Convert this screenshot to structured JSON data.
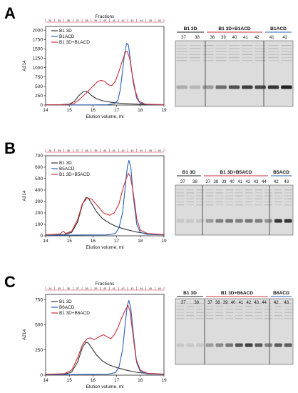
{
  "panels": [
    {
      "letter": "A",
      "frac_title": "Fractions",
      "fractions": [
        "34",
        "35",
        "36",
        "37",
        "38",
        "39",
        "40",
        "41",
        "42",
        "43",
        "44",
        "45",
        "46"
      ],
      "gel": {
        "groups": [
          {
            "label": "B1 3D",
            "lanes": [
              "37",
              "38"
            ],
            "color": "#222222"
          },
          {
            "label": "B1 3D+B1ACD",
            "lanes": [
              "38",
              "39",
              "40",
              "41",
              "42"
            ],
            "color": "#cc2f3a"
          },
          {
            "label": "B1ACD",
            "lanes": [
              "41",
              "42"
            ],
            "color": "#2a5fb0"
          }
        ],
        "band_strength": [
          0.25,
          0.2,
          0.35,
          0.6,
          0.75,
          0.85,
          0.8,
          0.9,
          1.0
        ]
      }
    },
    {
      "letter": "B",
      "frac_title": "",
      "fractions": [
        "34",
        "35",
        "36",
        "37",
        "38",
        "39",
        "40",
        "41",
        "42",
        "43",
        "44",
        "45",
        "46"
      ],
      "gel": {
        "groups": [
          {
            "label": "B1 3D",
            "lanes": [
              "37",
              "38"
            ],
            "color": "#222222"
          },
          {
            "label": "B1 3D+B5ACD",
            "lanes": [
              "37",
              "38",
              "39",
              "40",
              "41",
              "42",
              "43",
              "44"
            ],
            "color": "#cc2f3a"
          },
          {
            "label": "B5ACD",
            "lanes": [
              "42",
              "43"
            ],
            "color": "#2a5fb0"
          }
        ],
        "band_strength": [
          0.1,
          0.1,
          0.1,
          0.35,
          0.5,
          0.55,
          0.5,
          0.55,
          0.5,
          0.4,
          0.9,
          0.9
        ]
      }
    },
    {
      "letter": "C",
      "frac_title": "Fractions",
      "fractions": [
        "34",
        "35",
        "36",
        "37",
        "38",
        "39",
        "40",
        "41",
        "42",
        "43",
        "44",
        "45",
        "46"
      ],
      "gel": {
        "groups": [
          {
            "label": "B1 3D",
            "lanes": [
              "37",
              "38"
            ],
            "color": "#222222"
          },
          {
            "label": "B1 3D+B6ACD",
            "lanes": [
              "37",
              "38",
              "39",
              "40",
              "41",
              "42",
              "43",
              "44"
            ],
            "color": "#cc2f3a"
          },
          {
            "label": "B6ACD",
            "lanes": [
              "42",
              "43"
            ],
            "color": "#2a5fb0"
          }
        ],
        "band_strength": [
          0.1,
          0.1,
          0.1,
          0.35,
          0.45,
          0.55,
          0.75,
          0.85,
          0.7,
          0.5,
          0.7,
          0.7
        ]
      }
    }
  ],
  "chart_data": [
    {
      "type": "line",
      "panel": "A",
      "title": "Fractions",
      "xlabel": "Elution volume, ml",
      "ylabel": "A214",
      "xlim": [
        14,
        19
      ],
      "ylim": [
        0,
        2100
      ],
      "xticks": [
        14,
        15,
        16,
        17,
        18,
        19
      ],
      "yticks": [
        0,
        250,
        500,
        750,
        1000,
        1250,
        1500,
        1750,
        2000
      ],
      "legend_position": "top-left",
      "series": [
        {
          "name": "B1 3D",
          "color": "#333333",
          "points": [
            [
              14,
              5
            ],
            [
              14.6,
              8
            ],
            [
              15,
              25
            ],
            [
              15.2,
              90
            ],
            [
              15.4,
              250
            ],
            [
              15.6,
              360
            ],
            [
              15.7,
              370
            ],
            [
              15.8,
              340
            ],
            [
              15.95,
              250
            ],
            [
              16.15,
              170
            ],
            [
              16.4,
              115
            ],
            [
              16.8,
              70
            ],
            [
              17.2,
              45
            ],
            [
              17.6,
              30
            ],
            [
              18.2,
              15
            ],
            [
              19,
              8
            ]
          ]
        },
        {
          "name": "B1ACD",
          "color": "#2a5fb0",
          "points": [
            [
              14,
              5
            ],
            [
              16,
              5
            ],
            [
              16.6,
              8
            ],
            [
              16.9,
              35
            ],
            [
              17.05,
              120
            ],
            [
              17.15,
              400
            ],
            [
              17.25,
              900
            ],
            [
              17.33,
              1350
            ],
            [
              17.42,
              1650
            ],
            [
              17.5,
              1600
            ],
            [
              17.58,
              1200
            ],
            [
              17.7,
              600
            ],
            [
              17.85,
              180
            ],
            [
              18,
              50
            ],
            [
              18.3,
              15
            ],
            [
              19,
              8
            ]
          ]
        },
        {
          "name": "B1 3D+B1ACD",
          "color": "#cc2f3a",
          "points": [
            [
              14,
              5
            ],
            [
              14.8,
              8
            ],
            [
              15.2,
              40
            ],
            [
              15.45,
              160
            ],
            [
              15.7,
              310
            ],
            [
              15.95,
              470
            ],
            [
              16.2,
              630
            ],
            [
              16.35,
              660
            ],
            [
              16.5,
              630
            ],
            [
              16.65,
              540
            ],
            [
              16.8,
              520
            ],
            [
              16.95,
              640
            ],
            [
              17.1,
              900
            ],
            [
              17.25,
              1200
            ],
            [
              17.38,
              1420
            ],
            [
              17.45,
              1430
            ],
            [
              17.55,
              1250
            ],
            [
              17.65,
              850
            ],
            [
              17.8,
              350
            ],
            [
              17.95,
              100
            ],
            [
              18.2,
              25
            ],
            [
              19,
              8
            ]
          ]
        }
      ]
    },
    {
      "type": "line",
      "panel": "B",
      "title": "",
      "xlabel": "Elution volume, ml",
      "ylabel": "A214",
      "xlim": [
        14,
        19
      ],
      "ylim": [
        0,
        700
      ],
      "xticks": [
        14,
        15,
        16,
        17,
        18,
        19
      ],
      "yticks": [
        0,
        100,
        200,
        300,
        400,
        500,
        600,
        700
      ],
      "legend_position": "top-left",
      "series": [
        {
          "name": "B1 3D",
          "color": "#333333",
          "points": [
            [
              14,
              8
            ],
            [
              14.8,
              10
            ],
            [
              15.1,
              30
            ],
            [
              15.35,
              120
            ],
            [
              15.55,
              270
            ],
            [
              15.7,
              335
            ],
            [
              15.8,
              330
            ],
            [
              15.95,
              280
            ],
            [
              16.15,
              210
            ],
            [
              16.4,
              150
            ],
            [
              16.7,
              110
            ],
            [
              17,
              80
            ],
            [
              17.4,
              55
            ],
            [
              17.8,
              35
            ],
            [
              18.3,
              18
            ],
            [
              19,
              10
            ]
          ]
        },
        {
          "name": "B5ACD",
          "color": "#2a5fb0",
          "points": [
            [
              14,
              5
            ],
            [
              16.6,
              8
            ],
            [
              16.95,
              20
            ],
            [
              17.1,
              70
            ],
            [
              17.25,
              200
            ],
            [
              17.35,
              400
            ],
            [
              17.45,
              600
            ],
            [
              17.52,
              660
            ],
            [
              17.6,
              600
            ],
            [
              17.7,
              350
            ],
            [
              17.85,
              100
            ],
            [
              18,
              30
            ],
            [
              18.3,
              12
            ],
            [
              19,
              8
            ]
          ]
        },
        {
          "name": "B1 3D+B5ACD",
          "color": "#cc2f3a",
          "points": [
            [
              14,
              8
            ],
            [
              14.6,
              15
            ],
            [
              14.75,
              40
            ],
            [
              14.85,
              20
            ],
            [
              15.1,
              40
            ],
            [
              15.35,
              140
            ],
            [
              15.55,
              280
            ],
            [
              15.75,
              330
            ],
            [
              15.95,
              320
            ],
            [
              16.2,
              260
            ],
            [
              16.45,
              200
            ],
            [
              16.7,
              180
            ],
            [
              16.9,
              200
            ],
            [
              17.1,
              280
            ],
            [
              17.25,
              400
            ],
            [
              17.4,
              500
            ],
            [
              17.5,
              545
            ],
            [
              17.58,
              520
            ],
            [
              17.7,
              380
            ],
            [
              17.85,
              150
            ],
            [
              18,
              50
            ],
            [
              18.3,
              20
            ],
            [
              19,
              10
            ]
          ]
        }
      ]
    },
    {
      "type": "line",
      "panel": "C",
      "title": "Fractions",
      "xlabel": "Elution volume, ml",
      "ylabel": "A214",
      "xlim": [
        14,
        19
      ],
      "ylim": [
        0,
        800
      ],
      "xticks": [
        14,
        15,
        16,
        17,
        18,
        19
      ],
      "yticks": [
        0,
        250,
        500,
        750
      ],
      "legend_position": "top-left",
      "series": [
        {
          "name": "B1 3D",
          "color": "#333333",
          "points": [
            [
              14,
              8
            ],
            [
              14.8,
              10
            ],
            [
              15.1,
              30
            ],
            [
              15.35,
              130
            ],
            [
              15.55,
              270
            ],
            [
              15.7,
              325
            ],
            [
              15.8,
              320
            ],
            [
              15.95,
              270
            ],
            [
              16.15,
              200
            ],
            [
              16.4,
              140
            ],
            [
              16.7,
              100
            ],
            [
              17,
              75
            ],
            [
              17.4,
              50
            ],
            [
              17.8,
              30
            ],
            [
              18.3,
              15
            ],
            [
              19,
              8
            ]
          ]
        },
        {
          "name": "B6ACD",
          "color": "#2a5fb0",
          "points": [
            [
              14,
              5
            ],
            [
              16.6,
              8
            ],
            [
              16.95,
              25
            ],
            [
              17.1,
              80
            ],
            [
              17.25,
              250
            ],
            [
              17.35,
              480
            ],
            [
              17.45,
              690
            ],
            [
              17.52,
              740
            ],
            [
              17.6,
              660
            ],
            [
              17.72,
              380
            ],
            [
              17.85,
              120
            ],
            [
              18,
              35
            ],
            [
              18.3,
              12
            ],
            [
              19,
              8
            ]
          ]
        },
        {
          "name": "B1 3D+B6ACD",
          "color": "#cc2f3a",
          "points": [
            [
              14,
              8
            ],
            [
              14.8,
              15
            ],
            [
              15.1,
              50
            ],
            [
              15.35,
              170
            ],
            [
              15.55,
              300
            ],
            [
              15.75,
              360
            ],
            [
              15.9,
              370
            ],
            [
              16.05,
              350
            ],
            [
              16.25,
              380
            ],
            [
              16.45,
              400
            ],
            [
              16.6,
              380
            ],
            [
              16.75,
              360
            ],
            [
              16.9,
              400
            ],
            [
              17.05,
              470
            ],
            [
              17.2,
              560
            ],
            [
              17.35,
              640
            ],
            [
              17.48,
              690
            ],
            [
              17.56,
              640
            ],
            [
              17.68,
              420
            ],
            [
              17.82,
              160
            ],
            [
              18,
              50
            ],
            [
              18.3,
              18
            ],
            [
              19,
              10
            ]
          ]
        }
      ]
    }
  ]
}
